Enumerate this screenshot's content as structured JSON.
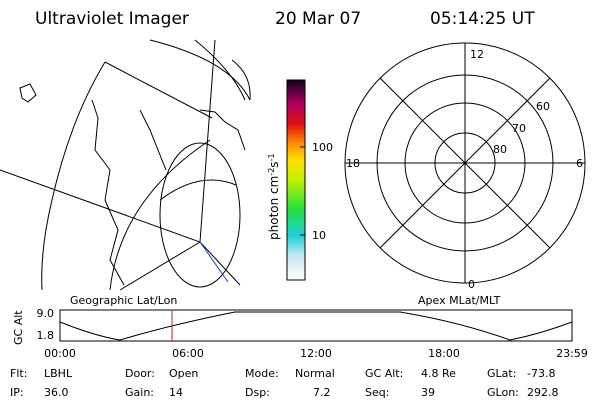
{
  "header": {
    "instrument": "Ultraviolet Imager",
    "date": "20 Mar 07",
    "time": "05:14:25 UT"
  },
  "colorbar": {
    "unit": {
      "base": "photon cm",
      "exp1": "-2",
      "mid": "s",
      "exp2": "-1"
    },
    "ticks": [
      "100",
      "10"
    ]
  },
  "polar": {
    "labels": [
      "12",
      "60",
      "70",
      "80",
      "18",
      "6",
      "0"
    ]
  },
  "altitude_panel": {
    "left_title": "Geographic Lat/Lon",
    "right_title": "Apex MLat/MLT",
    "y_label": "GC Alt",
    "y_ticks": [
      "9.0",
      "1.8"
    ],
    "x_ticks": [
      "00:00",
      "06:00",
      "12:00",
      "18:00",
      "23:59"
    ]
  },
  "footer": [
    [
      {
        "label": "Flt:",
        "value": "LBHL"
      },
      {
        "label": "Door:",
        "value": "Open"
      },
      {
        "label": "Mode:",
        "value": "Normal"
      },
      {
        "label": "GC Alt:",
        "value": "4.8 Re"
      },
      {
        "label": "GLat:",
        "value": "-73.8"
      }
    ],
    [
      {
        "label": "IP:",
        "value": "36.0"
      },
      {
        "label": "Gain:",
        "value": "14"
      },
      {
        "label": "Dsp:",
        "value": "7.2"
      },
      {
        "label": "Seq:",
        "value": "39"
      },
      {
        "label": "GLon:",
        "value": "292.8"
      }
    ]
  ]
}
